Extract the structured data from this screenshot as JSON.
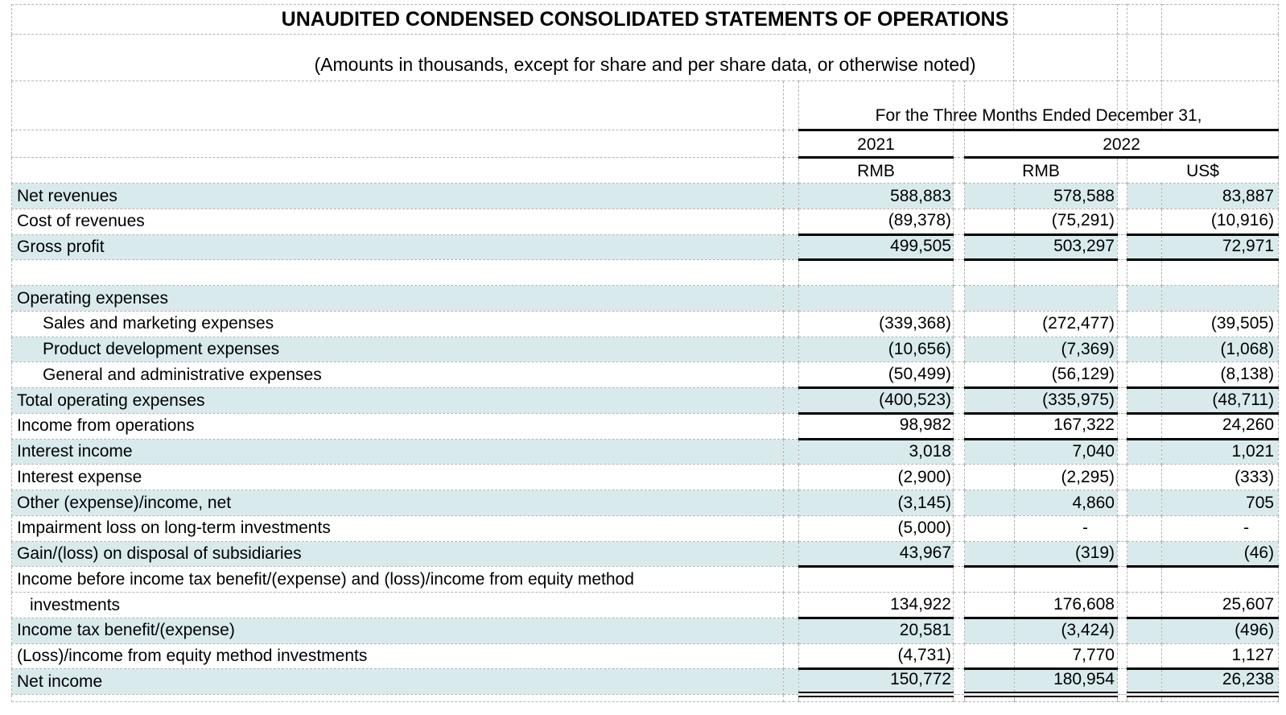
{
  "colors": {
    "row_highlight": "#d8eaec",
    "gridline": "#b3b3b3",
    "rule": "#000000"
  },
  "title": "UNAUDITED CONDENSED CONSOLIDATED STATEMENTS OF OPERATIONS",
  "subtitle": "(Amounts in thousands, except for share and per share data, or otherwise noted)",
  "table": {
    "period_header": "For the Three Months Ended December 31,",
    "years": {
      "col2021": "2021",
      "col2022": "2022"
    },
    "currencies": {
      "y2021_rmb": "RMB",
      "y2022_rmb": "RMB",
      "y2022_usd": "US$"
    },
    "rows": [
      {
        "label": "Net revenues",
        "indent": 0,
        "values": [
          "588,883",
          "578,588",
          "83,887"
        ],
        "highlight": true,
        "rule": ""
      },
      {
        "label": "Cost of revenues",
        "indent": 0,
        "values": [
          "(89,378)",
          "(75,291)",
          "(10,916)"
        ],
        "highlight": false,
        "rule": "single"
      },
      {
        "label": "Gross profit",
        "indent": 0,
        "values": [
          "499,505",
          "503,297",
          "72,971"
        ],
        "highlight": true,
        "rule": "single"
      },
      {
        "label": "",
        "indent": 0,
        "values": null,
        "highlight": false,
        "rule": ""
      },
      {
        "label": "Operating expenses",
        "indent": 0,
        "values": null,
        "highlight": true,
        "rule": ""
      },
      {
        "label": "Sales and marketing expenses",
        "indent": 1,
        "values": [
          "(339,368)",
          "(272,477)",
          "(39,505)"
        ],
        "highlight": false,
        "rule": ""
      },
      {
        "label": "Product development expenses",
        "indent": 1,
        "values": [
          "(10,656)",
          "(7,369)",
          "(1,068)"
        ],
        "highlight": true,
        "rule": ""
      },
      {
        "label": "General and administrative expenses",
        "indent": 1,
        "values": [
          "(50,499)",
          "(56,129)",
          "(8,138)"
        ],
        "highlight": false,
        "rule": "single"
      },
      {
        "label": "Total operating expenses",
        "indent": 0,
        "values": [
          "(400,523)",
          "(335,975)",
          "(48,711)"
        ],
        "highlight": true,
        "rule": "single"
      },
      {
        "label": "Income from operations",
        "indent": 0,
        "values": [
          "98,982",
          "167,322",
          "24,260"
        ],
        "highlight": false,
        "rule": "single"
      },
      {
        "label": "Interest income",
        "indent": 0,
        "values": [
          "3,018",
          "7,040",
          "1,021"
        ],
        "highlight": true,
        "rule": ""
      },
      {
        "label": "Interest expense",
        "indent": 0,
        "values": [
          "(2,900)",
          "(2,295)",
          "(333)"
        ],
        "highlight": false,
        "rule": ""
      },
      {
        "label": "Other (expense)/income, net",
        "indent": 0,
        "values": [
          "(3,145)",
          "4,860",
          "705"
        ],
        "highlight": true,
        "rule": ""
      },
      {
        "label": "Impairment loss on long-term investments",
        "indent": 0,
        "values": [
          "(5,000)",
          "-",
          "-"
        ],
        "highlight": false,
        "rule": ""
      },
      {
        "label": "Gain/(loss) on disposal of subsidiaries",
        "indent": 0,
        "values": [
          "43,967",
          "(319)",
          "(46)"
        ],
        "highlight": true,
        "rule": "single"
      },
      {
        "label": "Income before income tax benefit/(expense) and (loss)/income from equity method",
        "indent": 0,
        "values": null,
        "highlight": false,
        "rule": ""
      },
      {
        "label": "investments",
        "indent": 2,
        "values": [
          "134,922",
          "176,608",
          "25,607"
        ],
        "highlight": false,
        "rule": "single"
      },
      {
        "label": "Income tax benefit/(expense)",
        "indent": 0,
        "values": [
          "20,581",
          "(3,424)",
          "(496)"
        ],
        "highlight": true,
        "rule": ""
      },
      {
        "label": "(Loss)/income from equity method investments",
        "indent": 0,
        "values": [
          "(4,731)",
          "7,770",
          "1,127"
        ],
        "highlight": false,
        "rule": "single"
      },
      {
        "label": "Net income",
        "indent": 0,
        "values": [
          "150,772",
          "180,954",
          "26,238"
        ],
        "highlight": true,
        "rule": "double"
      }
    ]
  }
}
